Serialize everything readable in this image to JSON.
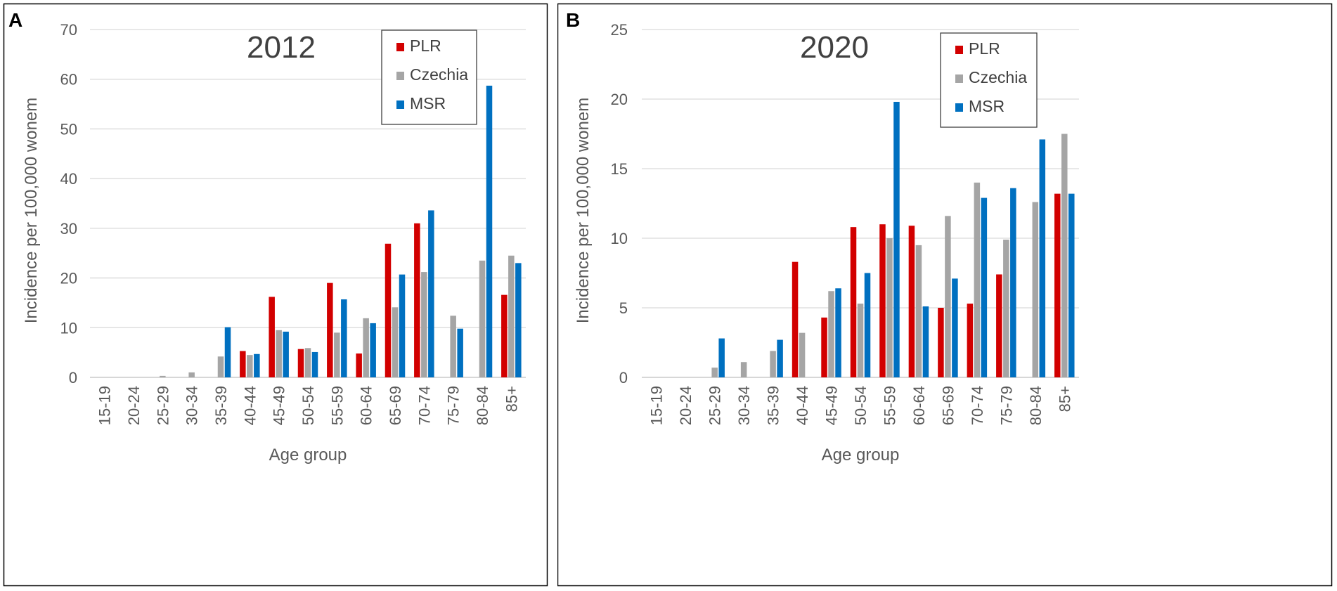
{
  "chart_data": [
    {
      "type": "bar",
      "panel_label": "A",
      "title": "2012",
      "xlabel": "Age group",
      "ylabel": "Incidence per 100,000 wonem",
      "ylim": [
        0,
        70
      ],
      "yticks": [
        0,
        10,
        20,
        30,
        40,
        50,
        60,
        70
      ],
      "grid": true,
      "legend_position": "top-right",
      "categories": [
        "15-19",
        "20-24",
        "25-29",
        "30-34",
        "35-39",
        "40-44",
        "45-49",
        "50-54",
        "55-59",
        "60-64",
        "65-69",
        "70-74",
        "75-79",
        "80-84",
        "85+"
      ],
      "series": [
        {
          "name": "PLR",
          "color": "#d20000",
          "values": [
            0,
            0,
            0,
            0,
            0,
            5.3,
            16.2,
            5.7,
            19.0,
            4.8,
            26.9,
            31.0,
            0,
            0,
            16.6
          ]
        },
        {
          "name": "Czechia",
          "color": "#a5a5a5",
          "values": [
            0,
            0,
            0.3,
            1.0,
            4.2,
            4.5,
            9.5,
            5.9,
            9.0,
            11.9,
            14.1,
            21.2,
            12.4,
            23.5,
            24.5
          ]
        },
        {
          "name": "MSR",
          "color": "#0070c0",
          "values": [
            0,
            0,
            0,
            0,
            10.1,
            4.7,
            9.2,
            5.1,
            15.7,
            10.9,
            20.7,
            33.6,
            9.8,
            58.7,
            23.0
          ]
        }
      ]
    },
    {
      "type": "bar",
      "panel_label": "B",
      "title": "2020",
      "xlabel": "Age group",
      "ylabel": "Incidence per 100,000 wonem",
      "ylim": [
        0,
        25
      ],
      "yticks": [
        0,
        5,
        10,
        15,
        20,
        25
      ],
      "grid": true,
      "legend_position": "top-right",
      "categories": [
        "15-19",
        "20-24",
        "25-29",
        "30-34",
        "35-39",
        "40-44",
        "45-49",
        "50-54",
        "55-59",
        "60-64",
        "65-69",
        "70-74",
        "75-79",
        "80-84",
        "85+"
      ],
      "series": [
        {
          "name": "PLR",
          "color": "#d20000",
          "values": [
            0,
            0,
            0,
            0,
            0,
            8.3,
            4.3,
            10.8,
            11.0,
            10.9,
            5.0,
            5.3,
            7.4,
            0,
            13.2
          ]
        },
        {
          "name": "Czechia",
          "color": "#a5a5a5",
          "values": [
            0,
            0,
            0.7,
            1.1,
            1.9,
            3.2,
            6.2,
            5.3,
            10.0,
            9.5,
            11.6,
            14.0,
            9.9,
            12.6,
            17.5
          ]
        },
        {
          "name": "MSR",
          "color": "#0070c0",
          "values": [
            0,
            0,
            2.8,
            0,
            2.7,
            0,
            6.4,
            7.5,
            19.8,
            5.1,
            7.1,
            12.9,
            13.6,
            17.1,
            13.2
          ]
        }
      ]
    }
  ]
}
